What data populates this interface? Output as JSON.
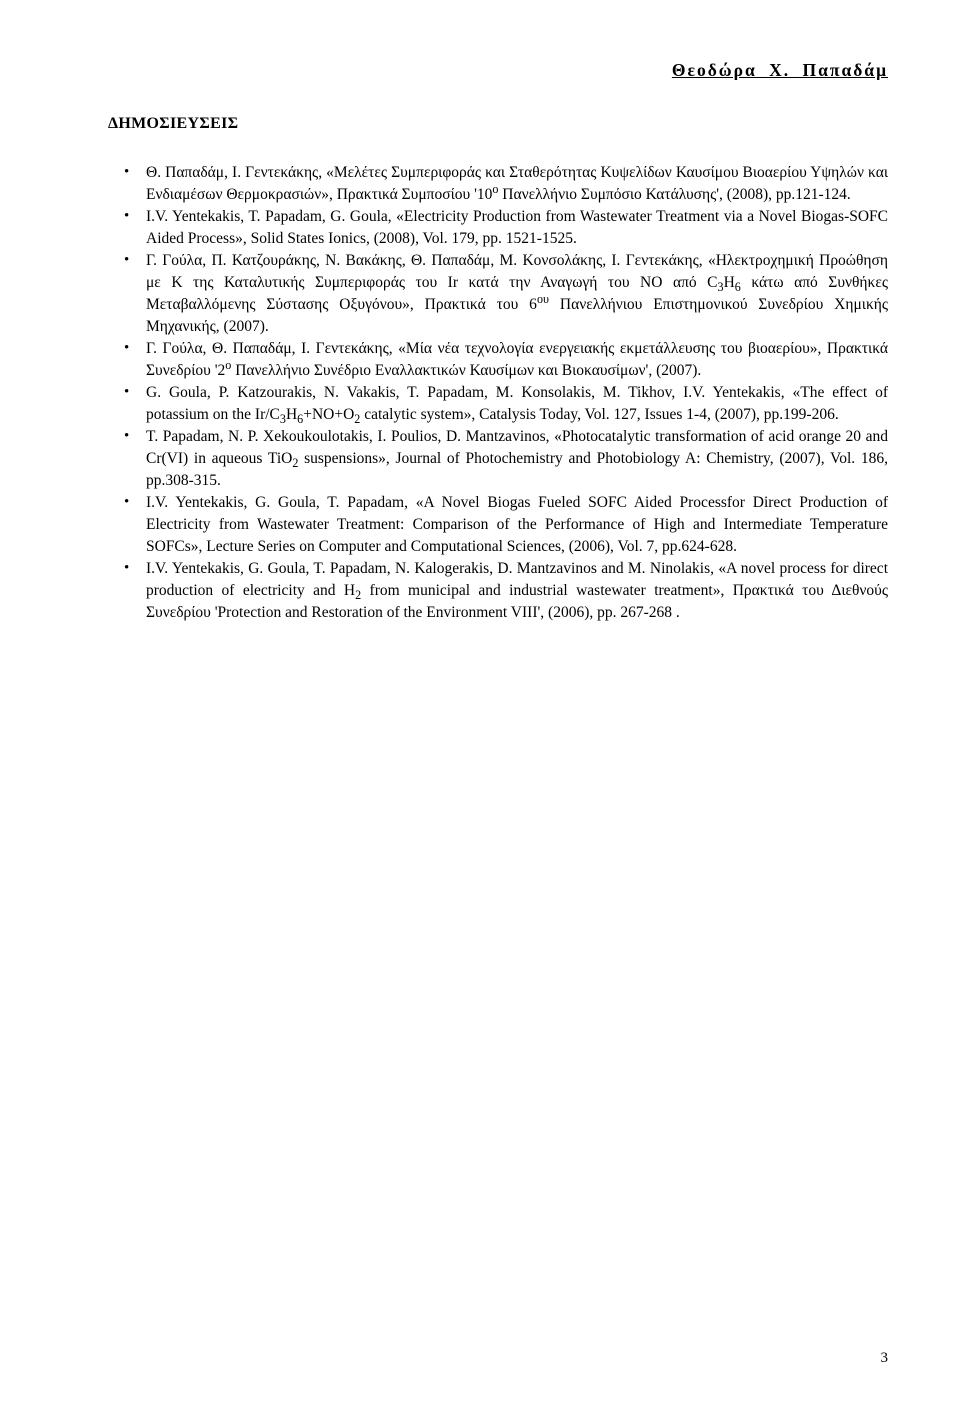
{
  "header": {
    "name": "Θεοδώρα  Χ.   Παπαδάμ"
  },
  "section_title": "ΔΗΜΟΣΙΕΥΣΕΙΣ",
  "page_number": "3",
  "pubs": [
    {
      "html": "Θ. Παπαδάμ, Ι. Γεντεκάκης, «Μελέτες Συμπεριφοράς και Σταθερότητας Κυψελίδων Καυσίμου Βιοαερίου Υψηλών και Ενδιαμέσων Θερμοκρασιών», Πρακτικά Συμποσίου '10<span class=\"sup\">ο</span> Πανελλήνιο Συμπόσιο Κατάλυσης', (2008), pp.121-124."
    },
    {
      "html": "I.V. Yentekakis, T. Papadam, G. Goula, «Electricity Production from Wastewater Treatment via a Novel Biogas-SOFC Aided Process», Solid States Ionics, (2008), Vol. 179, pp. 1521-1525."
    },
    {
      "html": "Γ. Γούλα, Π. Κατζουράκης, Ν. Βακάκης, Θ. Παπαδάμ, Μ. Κονσολάκης, Ι. Γεντεκάκης, «Ηλεκτροχημική Προώθηση με Κ της Καταλυτικής Συμπεριφοράς του Ir κατά την Αναγωγή του ΝΟ από C<span class=\"sub\">3</span>H<span class=\"sub\">6</span> κάτω από Συνθήκες Μεταβαλλόμενης Σύστασης Οξυγόνου», Πρακτικά του 6<span class=\"sup\">ου</span> Πανελλήνιου Επιστημονικού Συνεδρίου Χημικής Μηχανικής, (2007)."
    },
    {
      "html": "Γ. Γούλα, Θ. Παπαδάμ, Ι. Γεντεκάκης, «Μία νέα τεχνολογία ενεργειακής εκμετάλλευσης του βιοαερίου», Πρακτικά Συνεδρίου '2<span class=\"sup\">ο</span> Πανελλήνιο Συνέδριο Εναλλακτικών Καυσίμων και Βιοκαυσίμων', (2007)."
    },
    {
      "html": "G. Goula, P. Katzourakis, N. Vakakis, T. Papadam, M. Konsolakis, M. Tikhov, I.V. Yentekakis, «The effect of potassium on the Ir/C<span class=\"sub\">3</span>H<span class=\"sub\">6</span>+NO+O<span class=\"sub\">2</span> catalytic system», Catalysis Today, Vol. 127, Issues 1-4, (2007), pp.199-206."
    },
    {
      "html": "T. Papadam, N. P. Xekoukoulotakis, I. Poulios, D. Mantzavinos, «Photocatalytic transformation of acid orange 20 and Cr(VI) in aqueous TiO<span class=\"sub\">2</span> suspensions», Journal of Photochemistry and Photobiology A: Chemistry, (2007), Vol. 186, pp.308-315."
    },
    {
      "html": "I.V. Yentekakis, G. Goula, T. Papadam, «A Novel Biogas Fueled SOFC Aided Processfor Direct Production of Electricity from Wastewater Treatment: Comparison of the Performance of High and Intermediate Temperature SOFCs», Lecture Series on Computer and Computational Sciences, (2006), Vol. 7, pp.624-628."
    },
    {
      "html": "I.V. Yentekakis, G. Goula, T. Papadam, N. Kalogerakis, D. Mantzavinos and M. Ninolakis, «A novel process for direct production of electricity and H<span class=\"sub\">2</span> from municipal and industrial wastewater treatment», Πρακτικά του Διεθνούς Συνεδρίου 'Protection and Restoration of the Environment VIII', (2006), pp. 267-268 ."
    }
  ]
}
